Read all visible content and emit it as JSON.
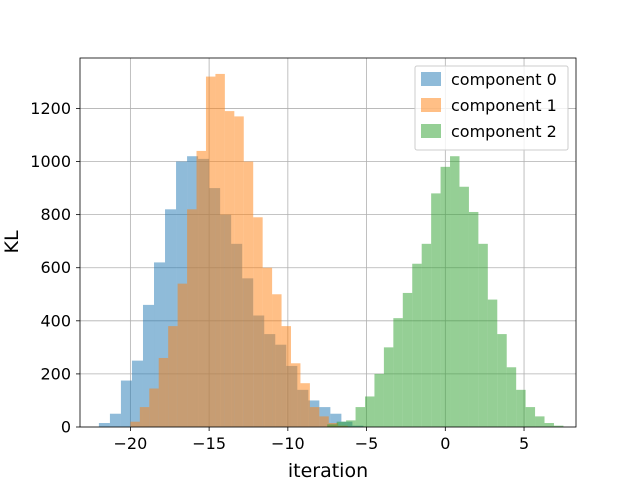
{
  "chart_data": {
    "type": "histogram",
    "xlabel": "iteration",
    "ylabel": "KL",
    "xlim": [
      -23.2,
      8.3
    ],
    "ylim": [
      0,
      1390
    ],
    "grid": true,
    "legend_position": "top-right",
    "x_ticks": [
      -20,
      -15,
      -10,
      -5,
      0,
      5
    ],
    "x_tick_labels": [
      "−20",
      "−15",
      "−10",
      "−5",
      "0",
      "5"
    ],
    "y_ticks": [
      0,
      200,
      400,
      600,
      800,
      1000,
      1200
    ],
    "y_tick_labels": [
      "0",
      "200",
      "400",
      "600",
      "800",
      "1000",
      "1200"
    ],
    "series": [
      {
        "name": "component 0",
        "color": "#1f77b4",
        "alpha": 0.5,
        "bins": [
          {
            "x0": -22.0,
            "x1": -21.3,
            "count": 15
          },
          {
            "x0": -21.3,
            "x1": -20.6,
            "count": 50
          },
          {
            "x0": -20.6,
            "x1": -19.9,
            "count": 175
          },
          {
            "x0": -19.9,
            "x1": -19.2,
            "count": 250
          },
          {
            "x0": -19.2,
            "x1": -18.5,
            "count": 460
          },
          {
            "x0": -18.5,
            "x1": -17.8,
            "count": 620
          },
          {
            "x0": -17.8,
            "x1": -17.1,
            "count": 820
          },
          {
            "x0": -17.1,
            "x1": -16.4,
            "count": 1000
          },
          {
            "x0": -16.4,
            "x1": -15.7,
            "count": 1020
          },
          {
            "x0": -15.7,
            "x1": -15.0,
            "count": 1010
          },
          {
            "x0": -15.0,
            "x1": -14.3,
            "count": 900
          },
          {
            "x0": -14.3,
            "x1": -13.6,
            "count": 800
          },
          {
            "x0": -13.6,
            "x1": -12.9,
            "count": 690
          },
          {
            "x0": -12.9,
            "x1": -12.2,
            "count": 560
          },
          {
            "x0": -12.2,
            "x1": -11.5,
            "count": 420
          },
          {
            "x0": -11.5,
            "x1": -10.8,
            "count": 350
          },
          {
            "x0": -10.8,
            "x1": -10.1,
            "count": 310
          },
          {
            "x0": -10.1,
            "x1": -9.4,
            "count": 230
          },
          {
            "x0": -9.4,
            "x1": -8.7,
            "count": 140
          },
          {
            "x0": -8.7,
            "x1": -8.0,
            "count": 100
          },
          {
            "x0": -8.0,
            "x1": -7.3,
            "count": 75
          },
          {
            "x0": -7.3,
            "x1": -6.6,
            "count": 50
          },
          {
            "x0": -6.6,
            "x1": -5.9,
            "count": 20
          },
          {
            "x0": -5.9,
            "x1": -5.2,
            "count": 5
          }
        ]
      },
      {
        "name": "component 1",
        "color": "#ff7f0e",
        "alpha": 0.5,
        "bins": [
          {
            "x0": -20.0,
            "x1": -19.4,
            "count": 20
          },
          {
            "x0": -19.4,
            "x1": -18.8,
            "count": 75
          },
          {
            "x0": -18.8,
            "x1": -18.2,
            "count": 145
          },
          {
            "x0": -18.2,
            "x1": -17.6,
            "count": 260
          },
          {
            "x0": -17.6,
            "x1": -17.0,
            "count": 380
          },
          {
            "x0": -17.0,
            "x1": -16.4,
            "count": 540
          },
          {
            "x0": -16.4,
            "x1": -15.8,
            "count": 820
          },
          {
            "x0": -15.8,
            "x1": -15.2,
            "count": 1040
          },
          {
            "x0": -15.2,
            "x1": -14.6,
            "count": 1320
          },
          {
            "x0": -14.6,
            "x1": -14.0,
            "count": 1330
          },
          {
            "x0": -14.0,
            "x1": -13.4,
            "count": 1190
          },
          {
            "x0": -13.4,
            "x1": -12.8,
            "count": 1170
          },
          {
            "x0": -12.8,
            "x1": -12.2,
            "count": 1000
          },
          {
            "x0": -12.2,
            "x1": -11.6,
            "count": 790
          },
          {
            "x0": -11.6,
            "x1": -11.0,
            "count": 600
          },
          {
            "x0": -11.0,
            "x1": -10.4,
            "count": 500
          },
          {
            "x0": -10.4,
            "x1": -9.8,
            "count": 380
          },
          {
            "x0": -9.8,
            "x1": -9.2,
            "count": 240
          },
          {
            "x0": -9.2,
            "x1": -8.6,
            "count": 165
          },
          {
            "x0": -8.6,
            "x1": -8.0,
            "count": 75
          },
          {
            "x0": -8.0,
            "x1": -7.4,
            "count": 40
          },
          {
            "x0": -7.4,
            "x1": -6.8,
            "count": 15
          },
          {
            "x0": -6.8,
            "x1": -6.2,
            "count": 5
          }
        ]
      },
      {
        "name": "component 2",
        "color": "#2ca02c",
        "alpha": 0.5,
        "bins": [
          {
            "x0": -7.5,
            "x1": -6.9,
            "count": 10
          },
          {
            "x0": -6.9,
            "x1": -6.3,
            "count": 20
          },
          {
            "x0": -6.3,
            "x1": -5.7,
            "count": 25
          },
          {
            "x0": -5.7,
            "x1": -5.1,
            "count": 75
          },
          {
            "x0": -5.1,
            "x1": -4.5,
            "count": 115
          },
          {
            "x0": -4.5,
            "x1": -3.9,
            "count": 200
          },
          {
            "x0": -3.9,
            "x1": -3.3,
            "count": 300
          },
          {
            "x0": -3.3,
            "x1": -2.7,
            "count": 410
          },
          {
            "x0": -2.7,
            "x1": -2.1,
            "count": 505
          },
          {
            "x0": -2.1,
            "x1": -1.5,
            "count": 615
          },
          {
            "x0": -1.5,
            "x1": -0.9,
            "count": 690
          },
          {
            "x0": -0.9,
            "x1": -0.3,
            "count": 880
          },
          {
            "x0": -0.3,
            "x1": 0.3,
            "count": 980
          },
          {
            "x0": 0.3,
            "x1": 0.9,
            "count": 1020
          },
          {
            "x0": 0.9,
            "x1": 1.5,
            "count": 905
          },
          {
            "x0": 1.5,
            "x1": 2.1,
            "count": 810
          },
          {
            "x0": 2.1,
            "x1": 2.7,
            "count": 690
          },
          {
            "x0": 2.7,
            "x1": 3.3,
            "count": 480
          },
          {
            "x0": 3.3,
            "x1": 3.9,
            "count": 350
          },
          {
            "x0": 3.9,
            "x1": 4.5,
            "count": 225
          },
          {
            "x0": 4.5,
            "x1": 5.1,
            "count": 140
          },
          {
            "x0": 5.1,
            "x1": 5.7,
            "count": 75
          },
          {
            "x0": 5.7,
            "x1": 6.3,
            "count": 40
          },
          {
            "x0": 6.3,
            "x1": 6.9,
            "count": 15
          },
          {
            "x0": 6.9,
            "x1": 7.5,
            "count": 5
          }
        ]
      }
    ]
  }
}
